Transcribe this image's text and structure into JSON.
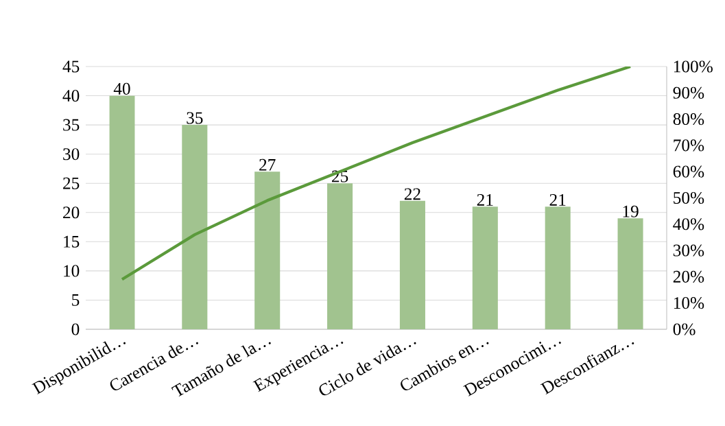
{
  "chart_data": {
    "type": "bar",
    "categories": [
      "Disponibilid…",
      "Carencia de…",
      "Tamaño de la…",
      "Experiencia…",
      "Ciclo de vida…",
      "Cambios en…",
      "Desconocimi…",
      "Desconfianz…"
    ],
    "series": [
      {
        "color": "#a1c38f",
        "values": [
          40,
          35,
          27,
          25,
          22,
          21,
          21,
          19
        ],
        "value_labels": [
          "40",
          "35",
          "27",
          "25",
          "22",
          "21",
          "21",
          "19"
        ]
      },
      {
        "type": "line",
        "axis": "y2",
        "color": "#5b9a3b",
        "values": [
          19,
          36,
          49,
          60,
          71,
          81,
          91,
          100
        ]
      }
    ],
    "ylim": [
      0,
      45
    ],
    "yticks": [
      0,
      5,
      10,
      15,
      20,
      25,
      30,
      35,
      40,
      45
    ],
    "y2lim": [
      0,
      100
    ],
    "y2ticks": [
      {
        "value": 0,
        "label": "0%"
      },
      {
        "value": 10,
        "label": "10%"
      },
      {
        "value": 20,
        "label": "20%"
      },
      {
        "value": 30,
        "label": "30%"
      },
      {
        "value": 40,
        "label": "40%"
      },
      {
        "value": 50,
        "label": "50%"
      },
      {
        "value": 60,
        "label": "60%"
      },
      {
        "value": 70,
        "label": "70%"
      },
      {
        "value": 80,
        "label": "80%"
      },
      {
        "value": 90,
        "label": "90%"
      },
      {
        "value": 100,
        "label": "100%"
      }
    ],
    "grid": "y",
    "marker": "none",
    "line_style": "solid"
  }
}
